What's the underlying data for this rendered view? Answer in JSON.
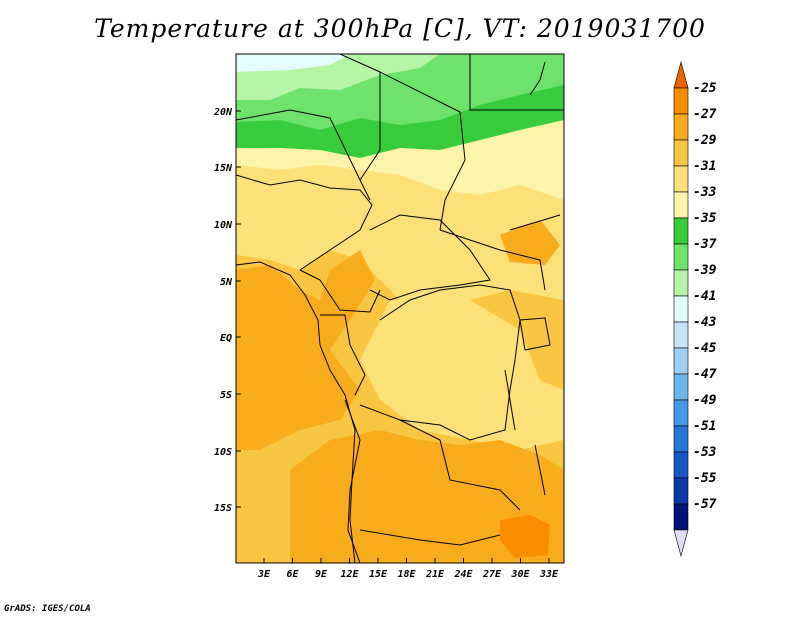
{
  "title": "Temperature at 300hPa [C], VT: 2019031700",
  "credit": "GrADS: IGES/COLA",
  "axes": {
    "lat_ticks": [
      "20N",
      "15N",
      "10N",
      "5N",
      "EQ",
      "5S",
      "10S",
      "15S"
    ],
    "lon_ticks": [
      "3E",
      "6E",
      "9E",
      "12E",
      "15E",
      "18E",
      "21E",
      "24E",
      "27E",
      "30E",
      "33E"
    ]
  },
  "colorbar": {
    "levels": [
      "-25",
      "-27",
      "-29",
      "-31",
      "-33",
      "-35",
      "-37",
      "-39",
      "-41",
      "-43",
      "-45",
      "-47",
      "-49",
      "-51",
      "-53",
      "-55",
      "-57"
    ],
    "colors": [
      "#f06400",
      "#fa8c00",
      "#f8ac1c",
      "#f8c640",
      "#fce078",
      "#fcf4a8",
      "#38cc3c",
      "#6ee36c",
      "#b6f4a6",
      "#e4fcfc",
      "#c4e6f8",
      "#9cd0f6",
      "#70b6ee",
      "#4898e8",
      "#2876dc",
      "#1558c8",
      "#0a3aa8",
      "#001478",
      "#e0dcf4"
    ]
  }
}
